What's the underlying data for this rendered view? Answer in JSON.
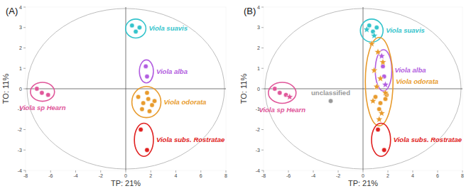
{
  "chart_data": [
    {
      "type": "scatter",
      "title": "(A)",
      "xlabel": "TP: 21%",
      "ylabel": "TO: 11%",
      "xlim": [
        -8,
        8
      ],
      "ylim": [
        -4,
        4
      ],
      "xticks": [
        -8,
        -6,
        -4,
        -2,
        0,
        2,
        4,
        6,
        8
      ],
      "yticks": [
        -4,
        -3,
        -2,
        -1,
        0,
        1,
        2,
        3,
        4
      ],
      "series": [
        {
          "name": "Viola suavis",
          "color": "#35c4cc",
          "marker": "circle",
          "x": [
            0.5,
            0.8,
            1.1
          ],
          "values": [
            3.1,
            2.8,
            3.0
          ]
        },
        {
          "name": "Viola alba",
          "color": "#b25de0",
          "marker": "circle",
          "x": [
            1.6,
            1.7
          ],
          "values": [
            1.1,
            0.6
          ]
        },
        {
          "name": "Viola odorata",
          "color": "#e89b2d",
          "marker": "circle",
          "x": [
            1.0,
            1.4,
            1.8,
            2.1,
            1.3,
            1.7,
            2.3,
            1.9
          ],
          "values": [
            -0.4,
            -0.7,
            -0.5,
            -0.8,
            -1.0,
            -0.2,
            -0.6,
            -1.1
          ]
        },
        {
          "name": "Viola sp Hearn",
          "color": "#e0579a",
          "marker": "circle",
          "x": [
            -7.1,
            -6.7,
            -6.2
          ],
          "values": [
            0.0,
            -0.2,
            -0.3
          ]
        },
        {
          "name": "Viola subs. Rostratae",
          "color": "#e02020",
          "marker": "circle",
          "x": [
            1.2,
            1.7
          ],
          "values": [
            -2.0,
            -3.0
          ]
        }
      ]
    },
    {
      "type": "scatter",
      "title": "(B)",
      "xlabel": "TP: 21%",
      "ylabel": "TO: 11%",
      "xlim": [
        -8,
        8
      ],
      "ylim": [
        -4,
        4
      ],
      "xticks": [
        -8,
        -6,
        -4,
        -2,
        0,
        2,
        4,
        6,
        8
      ],
      "yticks": [
        -4,
        -3,
        -2,
        -1,
        0,
        1,
        2,
        3,
        4
      ],
      "series": [
        {
          "name": "Viola suavis",
          "color": "#35c4cc",
          "marker": "circle",
          "x": [
            0.5,
            0.8,
            1.1
          ],
          "values": [
            3.1,
            2.8,
            3.0
          ],
          "predicted": {
            "marker": "star",
            "x": [
              0.3,
              0.9
            ],
            "values": [
              2.9,
              2.6
            ]
          }
        },
        {
          "name": "Viola alba",
          "color": "#b25de0",
          "marker": "circle",
          "x": [
            1.6,
            1.7
          ],
          "values": [
            1.1,
            0.6
          ],
          "predicted": {
            "marker": "star",
            "x": [
              1.5,
              1.8
            ],
            "values": [
              1.6,
              0.2
            ]
          }
        },
        {
          "name": "Viola odorata",
          "color": "#e89b2d",
          "marker": "circle",
          "x": [
            1.0,
            1.4,
            1.8,
            1.3,
            1.9
          ],
          "values": [
            -0.4,
            -0.7,
            -0.5,
            -1.0,
            -0.3
          ],
          "predicted": {
            "marker": "star",
            "x": [
              0.7,
              1.2,
              1.6,
              0.9,
              1.4,
              1.1,
              1.8,
              0.8,
              1.5,
              1.3
            ],
            "values": [
              2.2,
              1.8,
              1.3,
              0.9,
              0.5,
              0.1,
              -0.2,
              -0.6,
              -1.2,
              -1.5
            ]
          }
        },
        {
          "name": "Viola sp Hearn",
          "color": "#e0579a",
          "marker": "circle",
          "x": [
            -7.1,
            -6.7,
            -6.2
          ],
          "values": [
            0.0,
            -0.2,
            -0.3
          ],
          "predicted": {
            "marker": "star",
            "x": [
              -5.9
            ],
            "values": [
              -0.4
            ]
          }
        },
        {
          "name": "Viola subs. Rostratae",
          "color": "#e02020",
          "marker": "circle",
          "x": [
            1.2,
            1.7
          ],
          "values": [
            -2.0,
            -3.0
          ]
        },
        {
          "name": "unclassified",
          "color": "#999999",
          "marker": "circle",
          "x": [
            -2.6
          ],
          "values": [
            -0.6
          ]
        }
      ]
    }
  ]
}
